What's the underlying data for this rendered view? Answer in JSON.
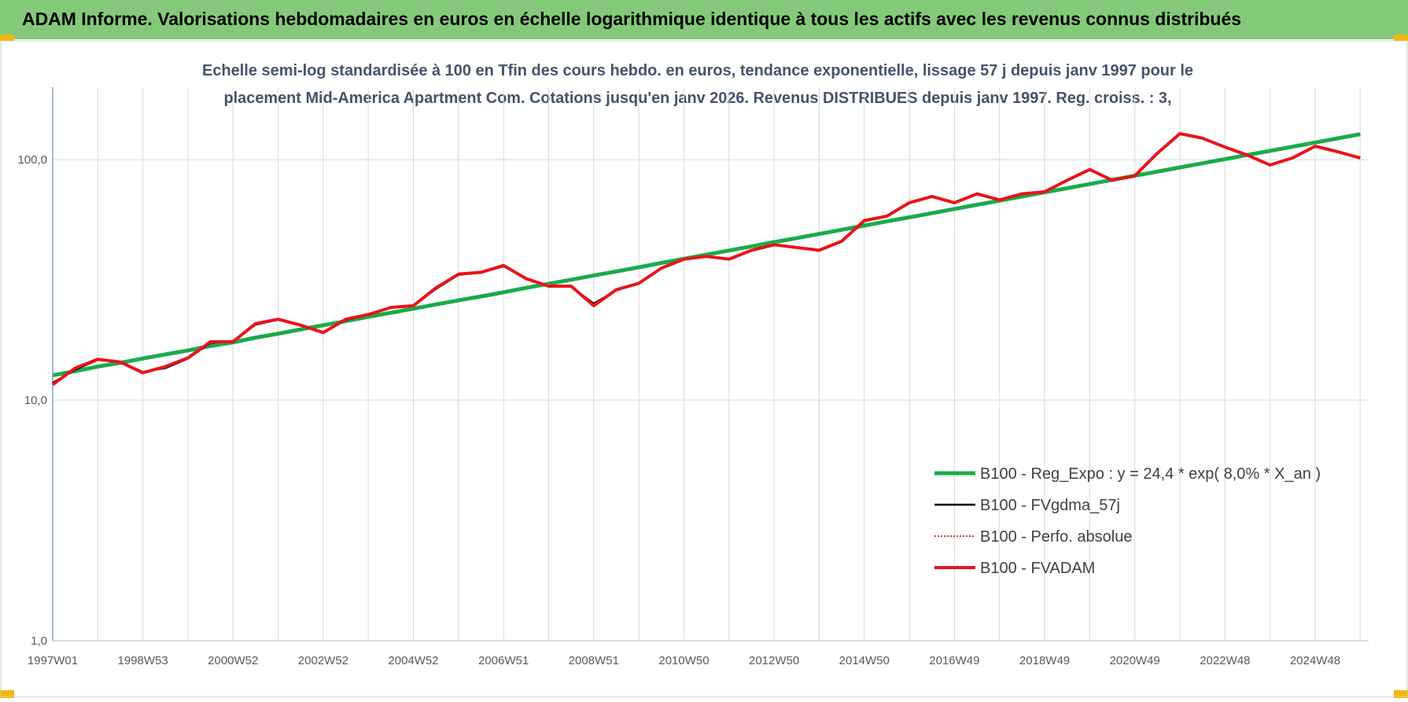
{
  "chart_data": {
    "type": "line",
    "title": "ADAM Informe. Valorisations hebdomadaires en euros en échelle logarithmique identique à tous les actifs avec les revenus connus distribués",
    "subtitle": [
      "Echelle semi-log standardisée à 100 en Tfin des cours hebdo. en euros, tendance exponentielle, lissage 57 j depuis janv 1997 pour le",
      "placement Mid-America Apartment Com. Cotations jusqu'en janv 2026. Revenus DISTRIBUES depuis janv 1997. Reg. croiss. : 3,"
    ],
    "log_scale": true,
    "grid": true,
    "legend_position": "lower right",
    "ylim": [
      1,
      200
    ],
    "yticks": [
      {
        "value": 1,
        "label": "1,0"
      },
      {
        "value": 10,
        "label": "10,0"
      },
      {
        "value": 100,
        "label": "100,0"
      }
    ],
    "categories": [
      "1997W01",
      null,
      null,
      null,
      "1998W53",
      null,
      null,
      null,
      "2000W52",
      null,
      null,
      null,
      "2002W52",
      null,
      null,
      null,
      "2004W52",
      null,
      null,
      null,
      "2006W51",
      null,
      null,
      null,
      "2008W51",
      null,
      null,
      null,
      "2010W50",
      null,
      null,
      null,
      "2012W50",
      null,
      null,
      null,
      "2014W50",
      null,
      null,
      null,
      "2016W49",
      null,
      null,
      null,
      "2018W49",
      null,
      null,
      null,
      "2020W49",
      null,
      null,
      null,
      "2022W48",
      null,
      null,
      null,
      "2024W48",
      null,
      null
    ],
    "series": [
      {
        "name": "B100 - Reg_Expo : y = 24,4 * exp( 8,0% *  X_an )",
        "color": "#1aab4b",
        "style": "solid",
        "values": [
          12.7,
          13.2,
          13.8,
          14.3,
          14.9,
          15.5,
          16.1,
          16.8,
          17.4,
          18.2,
          18.9,
          19.7,
          20.5,
          21.3,
          22.2,
          23.1,
          24.0,
          25.0,
          26.0,
          27.0,
          28.1,
          29.3,
          30.5,
          31.7,
          33.0,
          34.3,
          35.7,
          37.2,
          38.7,
          40.3,
          41.9,
          43.6,
          45.4,
          47.2,
          49.1,
          51.1,
          53.2,
          55.4,
          57.6,
          59.9,
          62.4,
          64.9,
          67.5,
          70.3,
          73.1,
          76.1,
          79.2,
          82.4,
          85.7,
          89.2,
          92.8,
          96.6,
          100.5,
          104.6,
          108.8,
          113.2,
          117.8,
          122.6,
          127.6
        ]
      },
      {
        "name": "B100 - FVgdma_57j",
        "color": "#000000",
        "style": "solid",
        "values": [
          11.8,
          13.4,
          14.7,
          14.4,
          13.1,
          13.6,
          14.9,
          17.3,
          17.6,
          20.6,
          21.6,
          20.6,
          19.2,
          21.5,
          22.6,
          24.2,
          24.8,
          29.0,
          33.2,
          34.0,
          36.0,
          32.2,
          29.9,
          29.6,
          25.2,
          28.6,
          30.6,
          35.2,
          38.5,
          39.5,
          38.7,
          41.8,
          44.1,
          43.2,
          42.1,
          45.6,
          55.4,
          58.2,
          66.0,
          70.1,
          66.4,
          71.9,
          68.2,
          71.8,
          73.4,
          81.8,
          90.5,
          82.6,
          85.5,
          105.8,
          127.5,
          122.9,
          112.9,
          104.5,
          95.3,
          101.5,
          113.4,
          107.9,
          101.8
        ]
      },
      {
        "name": "B100 - Perfo. absolue",
        "color": "#c00000",
        "style": "dotted",
        "values": [
          11.6,
          13.6,
          14.8,
          14.4,
          13.0,
          13.8,
          15.0,
          17.5,
          17.5,
          20.8,
          21.7,
          20.5,
          19.1,
          21.7,
          22.7,
          24.3,
          24.7,
          29.3,
          33.4,
          34.0,
          36.3,
          32.0,
          29.8,
          29.8,
          24.7,
          28.8,
          30.6,
          35.4,
          38.6,
          39.6,
          38.6,
          42.0,
          44.3,
          43.1,
          42.0,
          45.8,
          55.8,
          58.2,
          66.2,
          70.3,
          66.2,
          72.1,
          68.0,
          72.1,
          73.5,
          82.1,
          91.0,
          82.1,
          85.7,
          106.3,
          128.3,
          122.8,
          112.8,
          104.4,
          95.0,
          101.7,
          113.7,
          107.9,
          101.7
        ]
      },
      {
        "name": "B100 - FVADAM",
        "color": "#e8141b",
        "style": "solid",
        "values": [
          11.6,
          13.6,
          14.8,
          14.4,
          13.0,
          13.8,
          15.0,
          17.5,
          17.5,
          20.8,
          21.7,
          20.5,
          19.1,
          21.7,
          22.7,
          24.3,
          24.7,
          29.3,
          33.4,
          34.0,
          36.3,
          32.0,
          29.8,
          29.8,
          24.7,
          28.8,
          30.6,
          35.4,
          38.6,
          39.6,
          38.6,
          42.0,
          44.3,
          43.1,
          42.0,
          45.8,
          55.8,
          58.2,
          66.2,
          70.3,
          66.2,
          72.1,
          68.0,
          72.1,
          73.5,
          82.1,
          91.0,
          82.1,
          85.7,
          106.3,
          128.3,
          122.8,
          112.8,
          104.4,
          95.0,
          101.7,
          113.7,
          107.9,
          101.7
        ]
      }
    ]
  }
}
